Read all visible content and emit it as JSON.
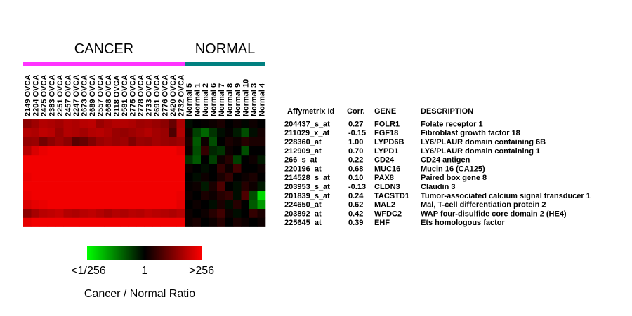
{
  "chart_data": {
    "type": "heatmap",
    "groups": [
      {
        "label": "CANCER",
        "color": "#ff33ff",
        "count": 20
      },
      {
        "label": "NORMAL",
        "color": "#008080",
        "count": 10
      }
    ],
    "columns": [
      "2149 OVCA",
      "2204 OVCA",
      "2475 OVCA",
      "2383 OVCA",
      "2251 OVCA",
      "2457 OVCA",
      "2247 OVCA",
      "2673 OVCA",
      "2689 OVCA",
      "2557 OVCA",
      "2668 OVCA",
      "2118 OVCA",
      "2581 OVCA",
      "2775 OVCA",
      "2778 OVCA",
      "2733 OVCA",
      "2691 OVCA",
      "2776 OVCA",
      "2420 OVCA",
      "2732 OVCA",
      "Normal 5",
      "Normal 1",
      "Normal 2",
      "Normal 6",
      "Normal 7",
      "Normal 8",
      "Normal 9",
      "Normal 10",
      "Normal 3",
      "Normal 4"
    ],
    "table_headers": {
      "id": "Affymetrix Id",
      "corr": "Corr.",
      "gene": "GENE",
      "desc": "DESCRIPTION"
    },
    "rows": [
      {
        "id": "204437_s_at",
        "corr": "0.27",
        "gene": "FOLR1",
        "desc": "Folate receptor 1"
      },
      {
        "id": "211029_x_at",
        "corr": "-0.15",
        "gene": "FGF18",
        "desc": "Fibroblast growth factor 18"
      },
      {
        "id": "228360_at",
        "corr": "1.00",
        "gene": "LYPD6B",
        "desc": "LY6/PLAUR domain containing 6B"
      },
      {
        "id": "212909_at",
        "corr": "0.70",
        "gene": "LYPD1",
        "desc": "LY6/PLAUR domain containing 1"
      },
      {
        "id": "266_s_at",
        "corr": "0.22",
        "gene": "CD24",
        "desc": "CD24 antigen"
      },
      {
        "id": "220196_at",
        "corr": "0.68",
        "gene": "MUC16",
        "desc": "Mucin 16 (CA125)"
      },
      {
        "id": "214528_s_at",
        "corr": "0.10",
        "gene": "PAX8",
        "desc": "Paired box gene 8"
      },
      {
        "id": "203953_s_at",
        "corr": "-0.13",
        "gene": "CLDN3",
        "desc": "Claudin 3"
      },
      {
        "id": "201839_s_at",
        "corr": "0.24",
        "gene": "TACSTD1",
        "desc": "Tumor-associated calcium signal transducer 1"
      },
      {
        "id": "224650_at",
        "corr": "0.62",
        "gene": "MAL2",
        "desc": "Mal, T-cell differentiation protein 2"
      },
      {
        "id": "203892_at",
        "corr": "0.42",
        "gene": "WFDC2",
        "desc": "WAP four-disulfide core domain 2 (HE4)"
      },
      {
        "id": "225645_at",
        "corr": "0.39",
        "gene": "EHF",
        "desc": "Ets homologous factor"
      }
    ],
    "values": [
      [
        0.55,
        0.62,
        0.7,
        0.68,
        0.64,
        0.7,
        0.68,
        0.72,
        0.74,
        0.6,
        0.66,
        0.7,
        0.7,
        0.68,
        0.62,
        0.64,
        0.6,
        0.55,
        0.4,
        0.68,
        -0.05,
        0.0,
        0.02,
        0.05,
        0.1,
        0.0,
        0.05,
        -0.02,
        0.05,
        0.0
      ],
      [
        0.7,
        0.68,
        0.75,
        0.72,
        0.6,
        0.7,
        0.68,
        0.64,
        0.7,
        0.72,
        0.68,
        0.6,
        0.58,
        0.62,
        0.66,
        0.7,
        0.64,
        0.6,
        0.3,
        0.7,
        0.05,
        -0.25,
        -0.4,
        -0.2,
        -0.05,
        0.02,
        -0.1,
        -0.3,
        -0.05,
        0.08
      ],
      [
        0.58,
        0.6,
        0.45,
        0.55,
        0.62,
        0.55,
        0.35,
        0.4,
        0.5,
        0.6,
        0.64,
        0.6,
        0.62,
        0.5,
        0.6,
        0.58,
        0.64,
        0.6,
        0.58,
        0.62,
        0.1,
        -0.35,
        0.05,
        -0.3,
        0.0,
        0.1,
        0.05,
        0.15,
        0.1,
        0.1
      ],
      [
        0.72,
        0.85,
        0.92,
        0.95,
        0.95,
        0.95,
        0.95,
        0.95,
        0.95,
        0.95,
        0.95,
        0.95,
        0.95,
        0.95,
        0.95,
        0.95,
        0.95,
        0.95,
        0.95,
        0.9,
        0.05,
        -0.3,
        0.2,
        -0.15,
        -0.2,
        0.05,
        0.0,
        -0.3,
        0.0,
        0.0
      ],
      [
        0.95,
        0.95,
        0.95,
        0.95,
        0.95,
        0.95,
        0.95,
        0.95,
        0.95,
        0.95,
        0.95,
        0.95,
        0.95,
        0.95,
        0.95,
        0.95,
        0.95,
        0.95,
        0.95,
        0.95,
        -0.2,
        -0.35,
        0.0,
        -0.25,
        0.05,
        0.15,
        -0.25,
        0.0,
        0.05,
        -0.1
      ],
      [
        0.95,
        0.95,
        0.95,
        0.95,
        0.95,
        0.95,
        0.95,
        0.95,
        0.95,
        0.95,
        0.95,
        0.95,
        0.95,
        0.95,
        0.95,
        0.95,
        0.95,
        0.95,
        0.95,
        0.95,
        0.05,
        0.0,
        -0.05,
        0.0,
        0.2,
        0.05,
        0.25,
        0.0,
        0.0,
        0.05
      ],
      [
        0.92,
        0.95,
        0.95,
        0.95,
        0.95,
        0.95,
        0.95,
        0.95,
        0.95,
        0.95,
        0.95,
        0.95,
        0.95,
        0.95,
        0.95,
        0.95,
        0.95,
        0.95,
        0.95,
        0.95,
        0.0,
        -0.05,
        0.05,
        0.0,
        0.1,
        0.2,
        0.0,
        0.05,
        0.1,
        0.0
      ],
      [
        0.95,
        0.95,
        0.95,
        0.95,
        0.95,
        0.95,
        0.95,
        0.95,
        0.95,
        0.95,
        0.95,
        0.95,
        0.95,
        0.95,
        0.95,
        0.95,
        0.95,
        0.95,
        0.95,
        0.95,
        0.02,
        0.05,
        -0.1,
        0.1,
        0.3,
        0.0,
        -0.05,
        0.15,
        0.05,
        -0.1
      ],
      [
        0.92,
        0.95,
        0.95,
        0.95,
        0.95,
        0.95,
        0.95,
        0.95,
        0.95,
        0.95,
        0.95,
        0.95,
        0.95,
        0.95,
        0.95,
        0.95,
        0.95,
        0.95,
        0.95,
        0.92,
        0.05,
        0.0,
        0.1,
        0.05,
        0.15,
        0.2,
        -0.05,
        0.3,
        -0.3,
        -0.85
      ],
      [
        0.85,
        0.9,
        0.92,
        0.95,
        0.95,
        0.95,
        0.95,
        0.95,
        0.95,
        0.95,
        0.95,
        0.95,
        0.95,
        0.95,
        0.95,
        0.95,
        0.95,
        0.95,
        0.95,
        0.9,
        0.0,
        0.05,
        0.0,
        -0.05,
        0.1,
        -0.05,
        0.15,
        0.0,
        -0.35,
        -0.6
      ],
      [
        0.55,
        0.65,
        0.72,
        0.75,
        0.78,
        0.7,
        0.68,
        0.72,
        0.75,
        0.7,
        0.65,
        0.7,
        0.68,
        0.72,
        0.7,
        0.75,
        0.72,
        0.7,
        0.68,
        0.72,
        0.05,
        0.0,
        0.05,
        0.15,
        0.25,
        0.05,
        -0.05,
        0.0,
        0.2,
        0.1
      ],
      [
        0.9,
        0.95,
        0.95,
        0.95,
        0.95,
        0.95,
        0.95,
        0.95,
        0.95,
        0.95,
        0.95,
        0.95,
        0.95,
        0.95,
        0.95,
        0.95,
        0.95,
        0.95,
        0.95,
        0.95,
        0.05,
        0.1,
        0.0,
        0.05,
        0.15,
        0.0,
        0.1,
        0.05,
        0.0,
        0.05
      ]
    ],
    "color_scale": {
      "low": "#00ff00",
      "mid": "#000000",
      "high": "#ff0000",
      "min": -1,
      "max": 1
    },
    "legend": {
      "ticks": [
        "<1/256",
        "1",
        ">256"
      ],
      "title": "Cancer / Normal Ratio"
    }
  }
}
